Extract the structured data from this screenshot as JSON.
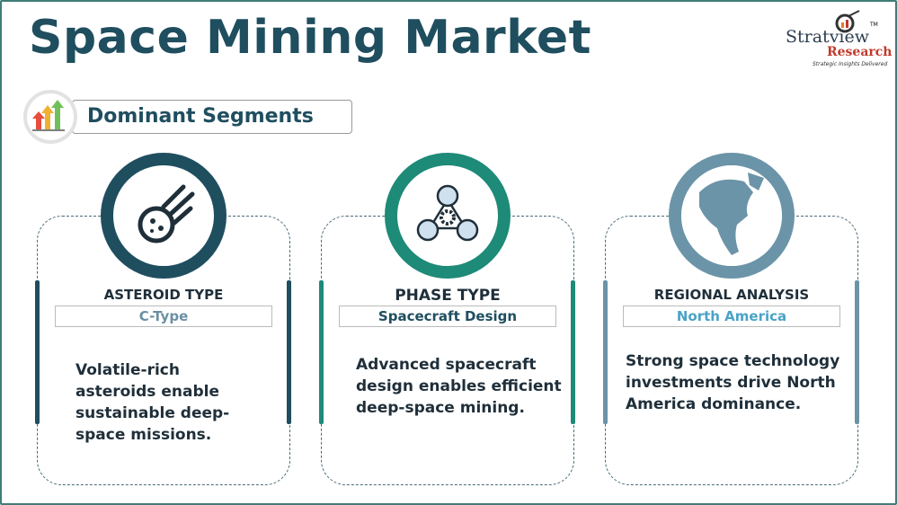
{
  "title": "Space Mining Market",
  "logo": {
    "name": "Stratview",
    "name2": "Research",
    "tagline": "Strategic Insights Delivered",
    "tm": "TM"
  },
  "section": {
    "label": "Dominant Segments",
    "icon": "growth-arrows-icon"
  },
  "cards": [
    {
      "heading": "ASTEROID TYPE",
      "value": "C-Type",
      "description": "Volatile-rich asteroids enable sustainable deep-space missions.",
      "icon": "asteroid-icon",
      "color": "#1f4e5f",
      "value_color": "#6b8fa3"
    },
    {
      "heading": "PHASE TYPE",
      "value": "Spacecraft Design",
      "description": "Advanced spacecraft design enables efficient deep-space mining.",
      "icon": "gear-network-icon",
      "color": "#1e8a78",
      "value_color": "#1f4e5f"
    },
    {
      "heading": "REGIONAL ANALYSIS",
      "value": "North America",
      "description": "Strong space technology investments drive North America dominance.",
      "icon": "north-america-globe-icon",
      "color": "#6b94a8",
      "value_color": "#4aa3c8"
    }
  ]
}
